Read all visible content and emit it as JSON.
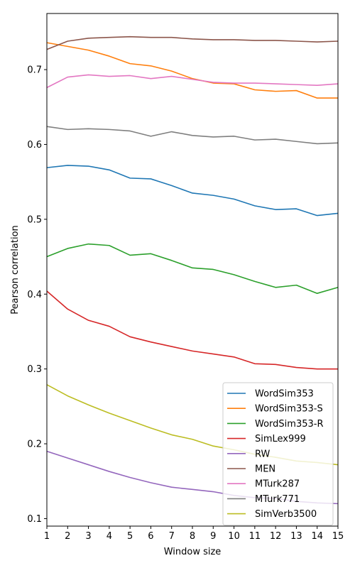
{
  "chart_data": {
    "type": "line",
    "title": "",
    "xlabel": "Window size",
    "ylabel": "Pearson correlation",
    "x": [
      1,
      2,
      3,
      4,
      5,
      6,
      7,
      8,
      9,
      10,
      11,
      12,
      13,
      14,
      15
    ],
    "xlim": [
      1,
      15
    ],
    "ylim": [
      0.09,
      0.775
    ],
    "xticks": [
      1,
      2,
      3,
      4,
      5,
      6,
      7,
      8,
      9,
      10,
      11,
      12,
      13,
      14,
      15
    ],
    "yticks": [
      0.1,
      0.2,
      0.3,
      0.4,
      0.5,
      0.6,
      0.7
    ],
    "ytick_labels": [
      "0.1",
      "0.2",
      "0.3",
      "0.4",
      "0.5",
      "0.6",
      "0.7"
    ],
    "grid": false,
    "legend_position": "lower-right",
    "series": [
      {
        "name": "WordSim353",
        "color": "#1f77b4",
        "values": [
          0.569,
          0.572,
          0.571,
          0.566,
          0.555,
          0.554,
          0.545,
          0.535,
          0.532,
          0.527,
          0.518,
          0.513,
          0.514,
          0.505,
          0.508
        ]
      },
      {
        "name": "WordSim353-S",
        "color": "#ff7f0e",
        "values": [
          0.736,
          0.731,
          0.726,
          0.718,
          0.708,
          0.705,
          0.698,
          0.688,
          0.682,
          0.681,
          0.673,
          0.671,
          0.672,
          0.662,
          0.662
        ]
      },
      {
        "name": "WordSim353-R",
        "color": "#2ca02c",
        "values": [
          0.45,
          0.461,
          0.467,
          0.465,
          0.452,
          0.454,
          0.445,
          0.435,
          0.433,
          0.426,
          0.417,
          0.409,
          0.412,
          0.401,
          0.409
        ]
      },
      {
        "name": "SimLex999",
        "color": "#d62728",
        "values": [
          0.404,
          0.38,
          0.365,
          0.357,
          0.343,
          0.336,
          0.33,
          0.324,
          0.32,
          0.316,
          0.307,
          0.306,
          0.302,
          0.3,
          0.3
        ]
      },
      {
        "name": "RW",
        "color": "#9467bd",
        "values": [
          0.19,
          0.181,
          0.172,
          0.163,
          0.155,
          0.148,
          0.142,
          0.139,
          0.136,
          0.131,
          0.128,
          0.127,
          0.123,
          0.121,
          0.12
        ]
      },
      {
        "name": "MEN",
        "color": "#8c564b",
        "values": [
          0.727,
          0.738,
          0.742,
          0.743,
          0.744,
          0.743,
          0.743,
          0.741,
          0.74,
          0.74,
          0.739,
          0.739,
          0.738,
          0.737,
          0.738
        ]
      },
      {
        "name": "MTurk287",
        "color": "#e377c2",
        "values": [
          0.676,
          0.69,
          0.693,
          0.691,
          0.692,
          0.688,
          0.691,
          0.687,
          0.683,
          0.682,
          0.682,
          0.681,
          0.68,
          0.679,
          0.681
        ]
      },
      {
        "name": "MTurk771",
        "color": "#7f7f7f",
        "values": [
          0.624,
          0.62,
          0.621,
          0.62,
          0.618,
          0.611,
          0.617,
          0.612,
          0.61,
          0.611,
          0.606,
          0.607,
          0.604,
          0.601,
          0.602
        ]
      },
      {
        "name": "SimVerb3500",
        "color": "#bcbd22",
        "values": [
          0.279,
          0.264,
          0.252,
          0.241,
          0.231,
          0.221,
          0.212,
          0.206,
          0.197,
          0.192,
          0.186,
          0.182,
          0.177,
          0.175,
          0.172
        ]
      }
    ]
  }
}
